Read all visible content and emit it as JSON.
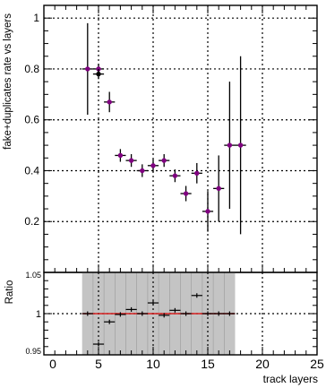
{
  "chart_data": [
    {
      "type": "scatter",
      "xlabel": "",
      "ylabel": "fake+duplicates rate vs layers",
      "xlim": [
        0,
        25
      ],
      "ylim": [
        0,
        1.05
      ],
      "grid": true,
      "y_ticks": [
        {
          "value": 0.2,
          "label": "0.2"
        },
        {
          "value": 0.4,
          "label": "0.4"
        },
        {
          "value": 0.6,
          "label": "0.6"
        },
        {
          "value": 0.8,
          "label": "0.8"
        },
        {
          "value": 1.0,
          "label": "1"
        }
      ],
      "series": [
        {
          "color": "#800080",
          "points": [
            {
              "x": 4,
              "y": 0.8,
              "err_lo": 0.18,
              "err_hi": 0.18
            },
            {
              "x": 5,
              "y": 0.8,
              "err_lo": 0.02,
              "err_hi": 0.02
            },
            {
              "x": 6,
              "y": 0.67,
              "err_lo": 0.04,
              "err_hi": 0.04
            },
            {
              "x": 7,
              "y": 0.46,
              "err_lo": 0.025,
              "err_hi": 0.025
            },
            {
              "x": 8,
              "y": 0.44,
              "err_lo": 0.025,
              "err_hi": 0.025
            },
            {
              "x": 9,
              "y": 0.4,
              "err_lo": 0.025,
              "err_hi": 0.025
            },
            {
              "x": 10,
              "y": 0.42,
              "err_lo": 0.025,
              "err_hi": 0.025
            },
            {
              "x": 11,
              "y": 0.44,
              "err_lo": 0.025,
              "err_hi": 0.025
            },
            {
              "x": 12,
              "y": 0.38,
              "err_lo": 0.025,
              "err_hi": 0.025
            },
            {
              "x": 13,
              "y": 0.31,
              "err_lo": 0.03,
              "err_hi": 0.03
            },
            {
              "x": 14,
              "y": 0.39,
              "err_lo": 0.04,
              "err_hi": 0.04
            },
            {
              "x": 15,
              "y": 0.24,
              "err_lo": 0.08,
              "err_hi": 0.08
            },
            {
              "x": 16,
              "y": 0.33,
              "err_lo": 0.13,
              "err_hi": 0.13
            },
            {
              "x": 17,
              "y": 0.5,
              "err_lo": 0.25,
              "err_hi": 0.25
            },
            {
              "x": 18,
              "y": 0.5,
              "err_lo": 0.35,
              "err_hi": 0.35
            }
          ]
        },
        {
          "color": "#000000",
          "points": [
            {
              "x": 5,
              "y": 0.78,
              "err_lo": 0.02,
              "err_hi": 0.02
            }
          ]
        }
      ]
    },
    {
      "type": "scatter",
      "xlabel": "track layers",
      "ylabel": "Ratio",
      "xlim": [
        0,
        25
      ],
      "ylim": [
        0.95,
        1.05
      ],
      "grid": true,
      "band": {
        "x_from": 3.5,
        "x_to": 17.5
      },
      "reference_line": 1.0,
      "x_ticks": [
        {
          "value": 0,
          "label": "0"
        },
        {
          "value": 5,
          "label": "5"
        },
        {
          "value": 10,
          "label": "10"
        },
        {
          "value": 15,
          "label": "15"
        },
        {
          "value": 20,
          "label": "20"
        },
        {
          "value": 25,
          "label": "25"
        }
      ],
      "y_ticks": [
        {
          "value": 0.95,
          "label": "0.95"
        },
        {
          "value": 1.0,
          "label": "1"
        },
        {
          "value": 1.05,
          "label": "1.05"
        }
      ],
      "points": [
        {
          "x": 4,
          "y": 1.0
        },
        {
          "x": 5,
          "y": 0.963
        },
        {
          "x": 6,
          "y": 0.99
        },
        {
          "x": 7,
          "y": 0.999
        },
        {
          "x": 8,
          "y": 1.005
        },
        {
          "x": 9,
          "y": 1.0
        },
        {
          "x": 10,
          "y": 1.013
        },
        {
          "x": 11,
          "y": 0.998
        },
        {
          "x": 12,
          "y": 1.004
        },
        {
          "x": 13,
          "y": 1.0
        },
        {
          "x": 14,
          "y": 1.022
        },
        {
          "x": 15,
          "y": 1.0
        },
        {
          "x": 16,
          "y": 1.0
        },
        {
          "x": 17,
          "y": 1.0
        }
      ]
    }
  ]
}
